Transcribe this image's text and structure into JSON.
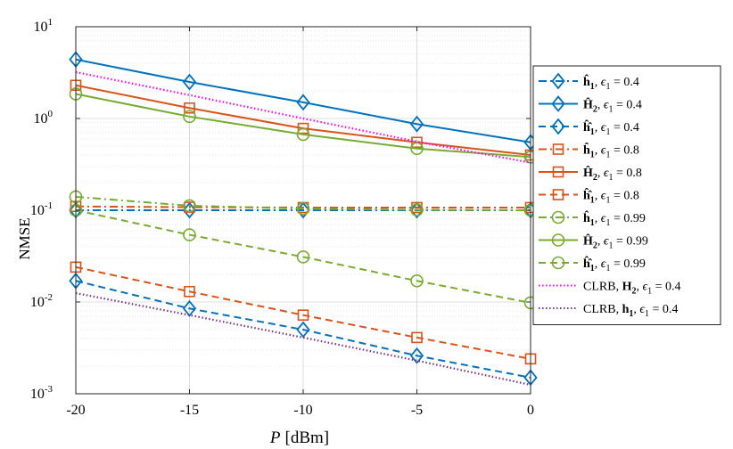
{
  "chart_data": {
    "type": "line",
    "title": "",
    "xlabel": "[dBm]",
    "xlabel_symbol": "P",
    "ylabel": "NMSE",
    "x": [
      -20,
      -15,
      -10,
      -5,
      0
    ],
    "xticks": [
      "-20",
      "-15",
      "-10",
      "-5",
      "0"
    ],
    "xlim": [
      -20,
      0
    ],
    "yscale": "log",
    "ylim": [
      0.001,
      10
    ],
    "yticks": [
      {
        "base": "10",
        "exp": "-3",
        "value": 0.001
      },
      {
        "base": "10",
        "exp": "-2",
        "value": 0.01
      },
      {
        "base": "10",
        "exp": "-1",
        "value": 0.1
      },
      {
        "base": "10",
        "exp": "0",
        "value": 1
      },
      {
        "base": "10",
        "exp": "1",
        "value": 10
      }
    ],
    "grid": true,
    "legend_position": "outside-right",
    "series": [
      {
        "name": "h1hat_rho0.4",
        "legend": {
          "sym": "ĥ",
          "sub": "1",
          "eps": ", ϵ",
          "epssub": "1",
          "val": " = 0.4"
        },
        "color": "#0072BD",
        "dash": "dashdot",
        "marker": "diamond",
        "values": [
          0.1,
          0.1,
          0.1,
          0.1,
          0.1
        ]
      },
      {
        "name": "H2hat_rho0.4",
        "legend": {
          "sym": "Ĥ",
          "sub": "2",
          "eps": ", ϵ",
          "epssub": "1",
          "val": " = 0.4"
        },
        "color": "#0072BD",
        "dash": "solid",
        "marker": "diamond",
        "values": [
          4.4,
          2.5,
          1.5,
          0.87,
          0.55
        ]
      },
      {
        "name": "h1hathat_rho0.4",
        "legend": {
          "sym": "ĥ̂",
          "sub": "1",
          "eps": ", ϵ",
          "epssub": "1",
          "val": " = 0.4"
        },
        "color": "#0072BD",
        "dash": "dashed",
        "marker": "diamond",
        "values": [
          0.017,
          0.0085,
          0.005,
          0.0026,
          0.0015
        ]
      },
      {
        "name": "h1hat_rho0.8",
        "legend": {
          "sym": "ĥ",
          "sub": "1",
          "eps": ", ϵ",
          "epssub": "1",
          "val": " = 0.8"
        },
        "color": "#D95319",
        "dash": "dashdot",
        "marker": "square",
        "values": [
          0.11,
          0.108,
          0.107,
          0.107,
          0.107
        ]
      },
      {
        "name": "H2hat_rho0.8",
        "legend": {
          "sym": "Ĥ",
          "sub": "2",
          "eps": ", ϵ",
          "epssub": "1",
          "val": " = 0.8"
        },
        "color": "#D95319",
        "dash": "solid",
        "marker": "square",
        "values": [
          2.3,
          1.3,
          0.78,
          0.55,
          0.4
        ]
      },
      {
        "name": "h1hathat_rho0.8",
        "legend": {
          "sym": "ĥ̂",
          "sub": "1",
          "eps": ", ϵ",
          "epssub": "1",
          "val": " = 0.8"
        },
        "color": "#D95319",
        "dash": "dashed",
        "marker": "square",
        "values": [
          0.024,
          0.013,
          0.0072,
          0.0041,
          0.0024
        ]
      },
      {
        "name": "h1hat_rho0.99",
        "legend": {
          "sym": "ĥ",
          "sub": "1",
          "eps": ", ϵ",
          "epssub": "1",
          "val": " = 0.99"
        },
        "color": "#77AC30",
        "dash": "dashdot",
        "marker": "circle",
        "values": [
          0.14,
          0.112,
          0.104,
          0.101,
          0.1
        ]
      },
      {
        "name": "H2hat_rho0.99",
        "legend": {
          "sym": "Ĥ",
          "sub": "2",
          "eps": ", ϵ",
          "epssub": "1",
          "val": " = 0.99"
        },
        "color": "#77AC30",
        "dash": "solid",
        "marker": "circle",
        "values": [
          1.85,
          1.05,
          0.67,
          0.47,
          0.38
        ]
      },
      {
        "name": "h1hathat_rho0.99",
        "legend": {
          "sym": "ĥ̂",
          "sub": "1",
          "eps": ", ϵ",
          "epssub": "1",
          "val": " = 0.99"
        },
        "color": "#77AC30",
        "dash": "dashed",
        "marker": "circle",
        "values": [
          0.1,
          0.054,
          0.031,
          0.017,
          0.0098
        ]
      },
      {
        "name": "CLRB_H2",
        "legend": {
          "pre": "CLRB, ",
          "sym": "H",
          "sub": "2",
          "eps": ", ϵ",
          "epssub": "1",
          "val": " = 0.4"
        },
        "color": "#FF00FF",
        "dash": "dotted",
        "marker": "none",
        "values": [
          3.2,
          1.8,
          1.0,
          0.56,
          0.33
        ]
      },
      {
        "name": "CLRB_h1",
        "legend": {
          "pre": "CLRB, ",
          "sym": "h",
          "sub": "1",
          "eps": ", ϵ",
          "epssub": "1",
          "val": " = 0.4"
        },
        "color": "#7E2F8E",
        "dash": "dotted",
        "marker": "none",
        "values": [
          0.0125,
          0.0072,
          0.0041,
          0.0023,
          0.00125
        ]
      }
    ]
  }
}
